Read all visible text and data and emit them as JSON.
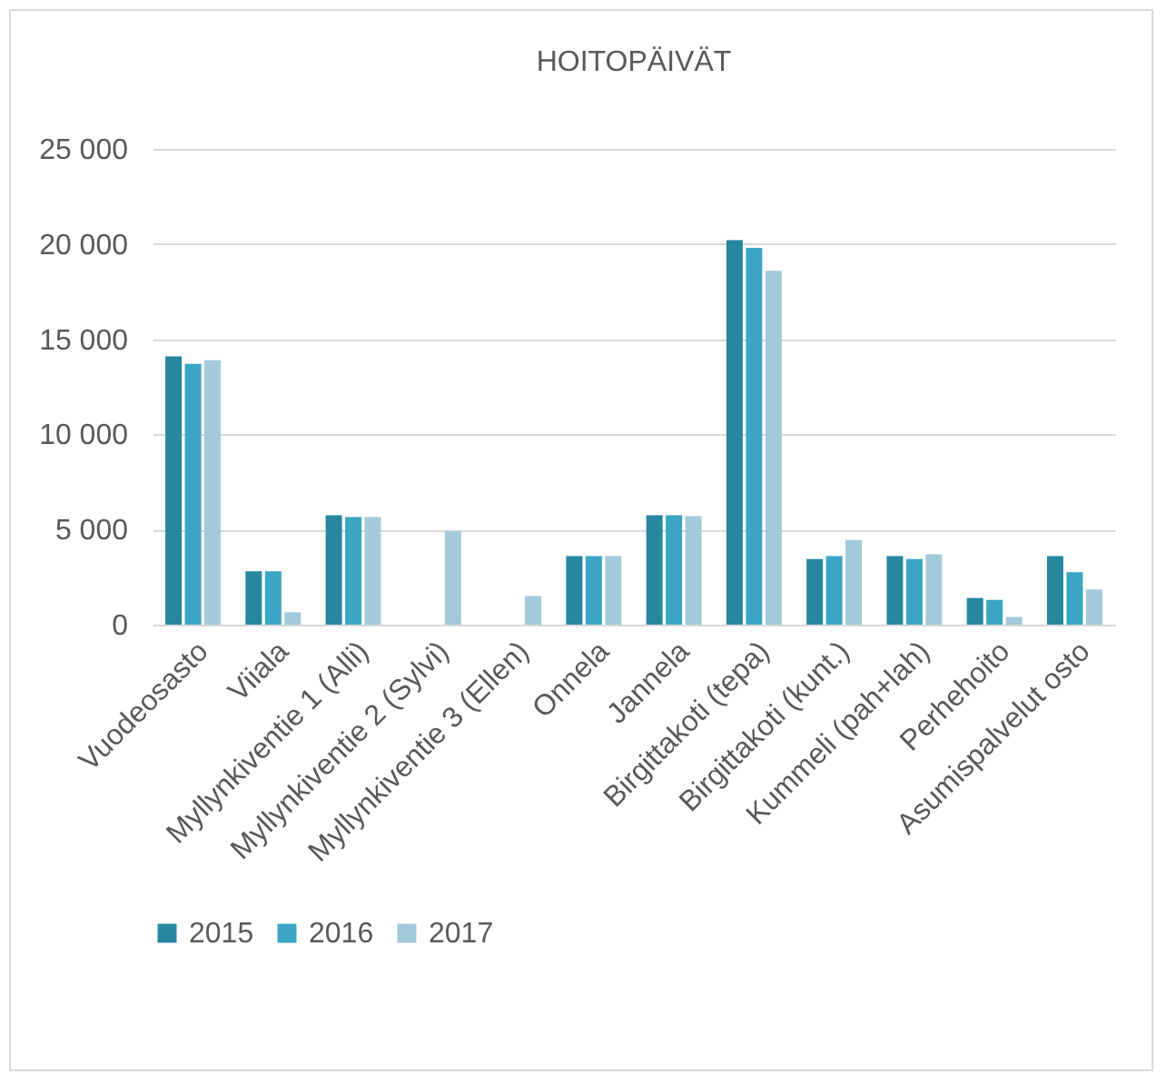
{
  "chart_data": {
    "type": "bar",
    "title": "HOITOPÄIVÄT",
    "categories": [
      "Vuodeosasto",
      "Viiala",
      "Myllynkiventie 1 (Alli)",
      "Myllynkiventie 2 (Sylvi)",
      "Myllynkiventie 3 (Ellen)",
      "Onnela",
      "Jannela",
      "Birgittakoti (tepa)",
      "Birgittakoti (kunt.)",
      "Kummeli (pah+lah)",
      "Perhehoito",
      "Asumispalvelut osto"
    ],
    "series": [
      {
        "name": "2015",
        "color": "#26879f",
        "values": [
          14100,
          2800,
          5750,
          null,
          null,
          3600,
          5750,
          20200,
          3450,
          3600,
          1400,
          3600
        ]
      },
      {
        "name": "2016",
        "color": "#3aa6c4",
        "values": [
          13700,
          2800,
          5650,
          null,
          null,
          3600,
          5750,
          19800,
          3600,
          3450,
          1300,
          2750
        ]
      },
      {
        "name": "2017",
        "color": "#a3cadb",
        "values": [
          13900,
          650,
          5650,
          4900,
          1500,
          3600,
          5700,
          18600,
          4450,
          3700,
          400,
          1850
        ]
      }
    ],
    "ylim": [
      0,
      25000
    ],
    "yticks": [
      {
        "value": 0,
        "label": "0"
      },
      {
        "value": 5000,
        "label": "5 000"
      },
      {
        "value": 10000,
        "label": "10 000"
      },
      {
        "value": 15000,
        "label": "15 000"
      },
      {
        "value": 20000,
        "label": "20 000"
      },
      {
        "value": 25000,
        "label": "25 000"
      }
    ],
    "grid": "y",
    "legend": "bottom"
  }
}
